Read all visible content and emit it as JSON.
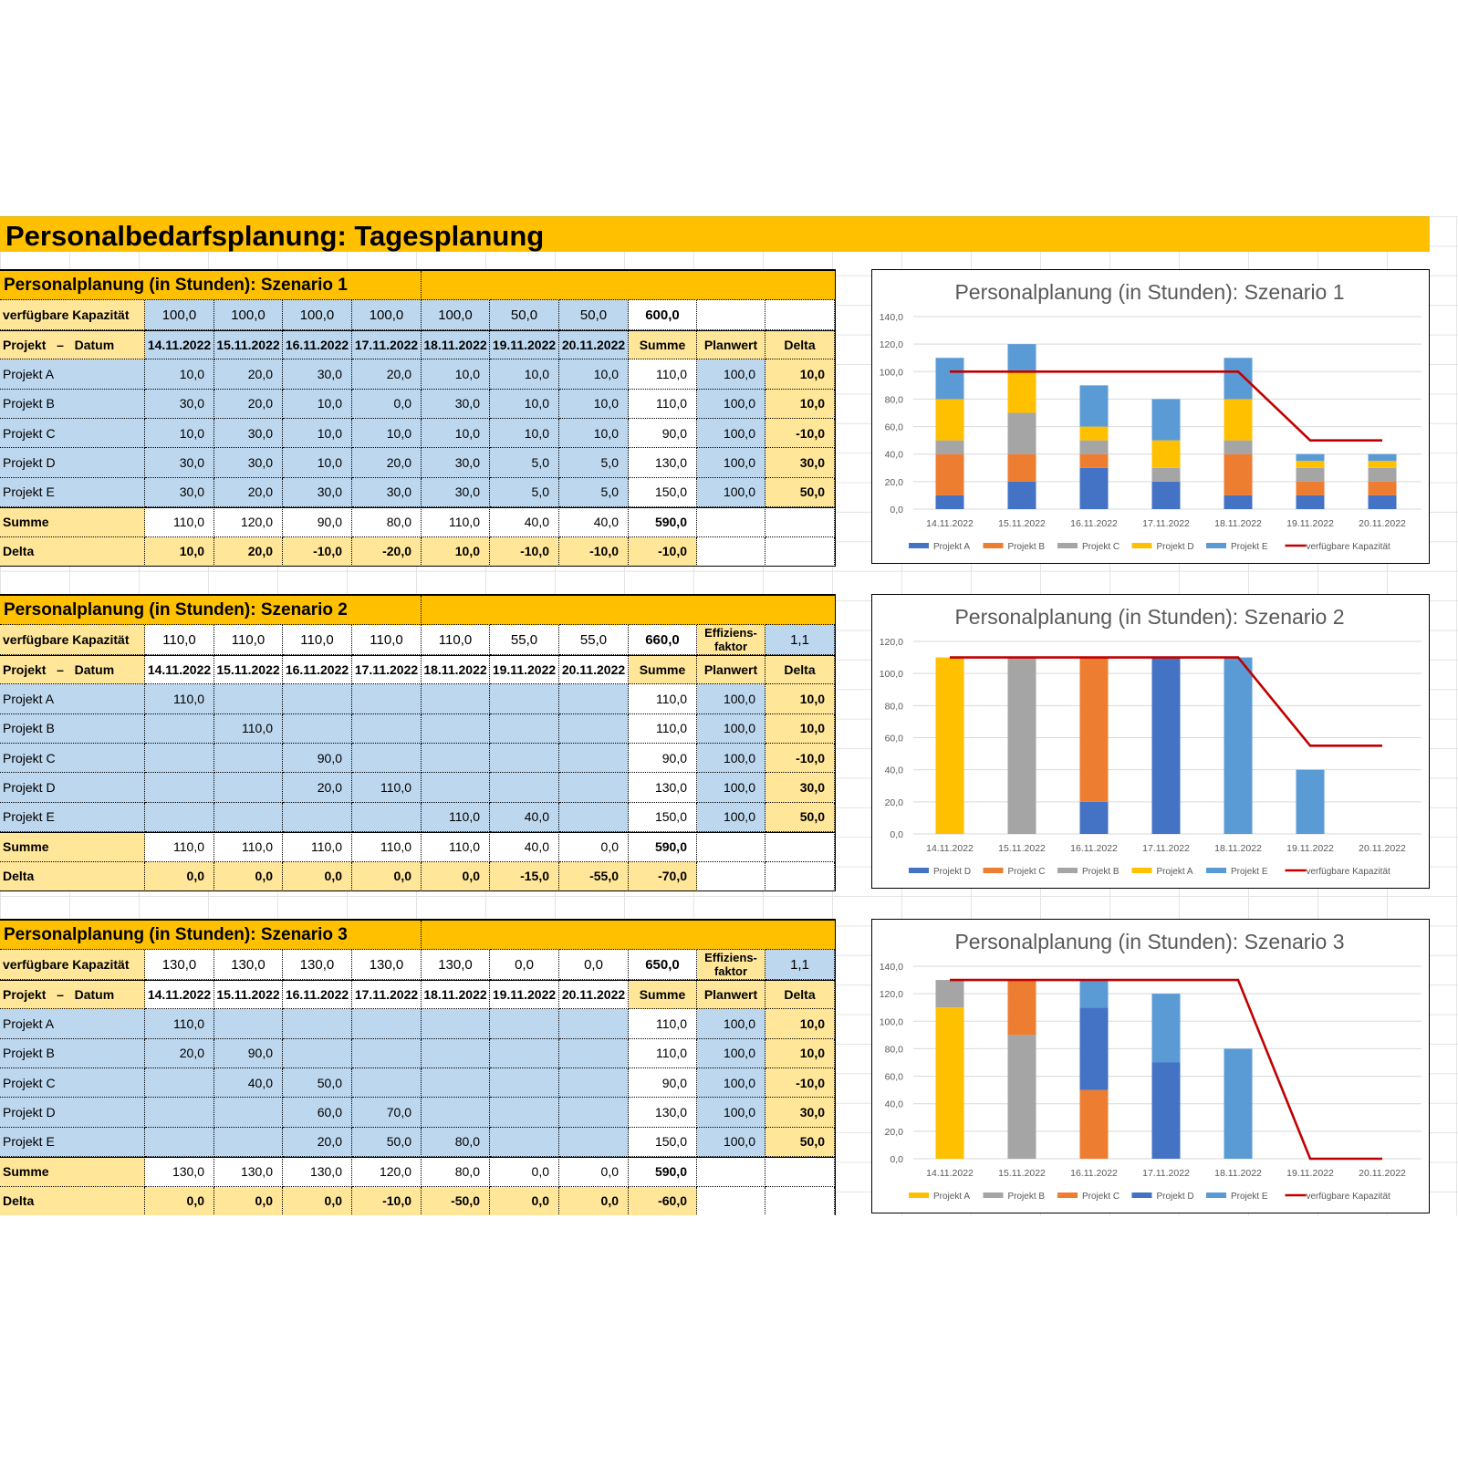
{
  "page_title": "Personalbedarfsplanung: Tagesplanung",
  "dates": [
    "14.11.2022",
    "15.11.2022",
    "16.11.2022",
    "17.11.2022",
    "18.11.2022",
    "19.11.2022",
    "20.11.2022"
  ],
  "colors": {
    "title_bar": "#FFC000",
    "label_yellow": "#FFE699",
    "input_blue": "#BDD7EE",
    "capacity_line": "#C00000"
  },
  "scenarios": [
    {
      "title": "Personalplanung (in Stunden): Szenario 1",
      "capacity_label": "verfügbare Kapazität",
      "capacity": [
        "100,0",
        "100,0",
        "100,0",
        "100,0",
        "100,0",
        "50,0",
        "50,0"
      ],
      "capacity_sum": "600,0",
      "efficiency_label": "",
      "efficiency_value": "",
      "header": {
        "project_date": "Projekt   –   Datum",
        "summe": "Summe",
        "planwert": "Planwert",
        "delta": "Delta"
      },
      "projects": [
        {
          "name": "Projekt A",
          "values": [
            "10,0",
            "20,0",
            "30,0",
            "20,0",
            "10,0",
            "10,0",
            "10,0"
          ],
          "summe": "110,0",
          "planwert": "100,0",
          "delta": "10,0"
        },
        {
          "name": "Projekt B",
          "values": [
            "30,0",
            "20,0",
            "10,0",
            "0,0",
            "30,0",
            "10,0",
            "10,0"
          ],
          "summe": "110,0",
          "planwert": "100,0",
          "delta": "10,0"
        },
        {
          "name": "Projekt C",
          "values": [
            "10,0",
            "30,0",
            "10,0",
            "10,0",
            "10,0",
            "10,0",
            "10,0"
          ],
          "summe": "90,0",
          "planwert": "100,0",
          "delta": "-10,0"
        },
        {
          "name": "Projekt D",
          "values": [
            "30,0",
            "30,0",
            "10,0",
            "20,0",
            "30,0",
            "5,0",
            "5,0"
          ],
          "summe": "130,0",
          "planwert": "100,0",
          "delta": "30,0"
        },
        {
          "name": "Projekt E",
          "values": [
            "30,0",
            "20,0",
            "30,0",
            "30,0",
            "30,0",
            "5,0",
            "5,0"
          ],
          "summe": "150,0",
          "planwert": "100,0",
          "delta": "50,0"
        }
      ],
      "summe_row": {
        "label": "Summe",
        "values": [
          "110,0",
          "120,0",
          "90,0",
          "80,0",
          "110,0",
          "40,0",
          "40,0"
        ],
        "total": "590,0"
      },
      "delta_row": {
        "label": "Delta",
        "values": [
          "10,0",
          "20,0",
          "-10,0",
          "-20,0",
          "10,0",
          "-10,0",
          "-10,0"
        ],
        "total": "-10,0"
      }
    },
    {
      "title": "Personalplanung (in Stunden): Szenario 2",
      "capacity_label": "verfügbare Kapazität",
      "capacity": [
        "110,0",
        "110,0",
        "110,0",
        "110,0",
        "110,0",
        "55,0",
        "55,0"
      ],
      "capacity_sum": "660,0",
      "efficiency_label": "Effiziens-faktor",
      "efficiency_value": "1,1",
      "header": {
        "project_date": "Projekt   –   Datum",
        "summe": "Summe",
        "planwert": "Planwert",
        "delta": "Delta"
      },
      "projects": [
        {
          "name": "Projekt A",
          "values": [
            "110,0",
            "",
            "",
            "",
            "",
            "",
            ""
          ],
          "summe": "110,0",
          "planwert": "100,0",
          "delta": "10,0"
        },
        {
          "name": "Projekt B",
          "values": [
            "",
            "110,0",
            "",
            "",
            "",
            "",
            ""
          ],
          "summe": "110,0",
          "planwert": "100,0",
          "delta": "10,0"
        },
        {
          "name": "Projekt C",
          "values": [
            "",
            "",
            "90,0",
            "",
            "",
            "",
            ""
          ],
          "summe": "90,0",
          "planwert": "100,0",
          "delta": "-10,0"
        },
        {
          "name": "Projekt D",
          "values": [
            "",
            "",
            "20,0",
            "110,0",
            "",
            "",
            ""
          ],
          "summe": "130,0",
          "planwert": "100,0",
          "delta": "30,0"
        },
        {
          "name": "Projekt E",
          "values": [
            "",
            "",
            "",
            "",
            "110,0",
            "40,0",
            ""
          ],
          "summe": "150,0",
          "planwert": "100,0",
          "delta": "50,0"
        }
      ],
      "summe_row": {
        "label": "Summe",
        "values": [
          "110,0",
          "110,0",
          "110,0",
          "110,0",
          "110,0",
          "40,0",
          "0,0"
        ],
        "total": "590,0"
      },
      "delta_row": {
        "label": "Delta",
        "values": [
          "0,0",
          "0,0",
          "0,0",
          "0,0",
          "0,0",
          "-15,0",
          "-55,0"
        ],
        "total": "-70,0"
      }
    },
    {
      "title": "Personalplanung (in Stunden): Szenario 3",
      "capacity_label": "verfügbare Kapazität",
      "capacity": [
        "130,0",
        "130,0",
        "130,0",
        "130,0",
        "130,0",
        "0,0",
        "0,0"
      ],
      "capacity_sum": "650,0",
      "efficiency_label": "Effiziens-faktor",
      "efficiency_value": "1,1",
      "header": {
        "project_date": "Projekt   –   Datum",
        "summe": "Summe",
        "planwert": "Planwert",
        "delta": "Delta"
      },
      "projects": [
        {
          "name": "Projekt A",
          "values": [
            "110,0",
            "",
            "",
            "",
            "",
            "",
            ""
          ],
          "summe": "110,0",
          "planwert": "100,0",
          "delta": "10,0"
        },
        {
          "name": "Projekt B",
          "values": [
            "20,0",
            "90,0",
            "",
            "",
            "",
            "",
            ""
          ],
          "summe": "110,0",
          "planwert": "100,0",
          "delta": "10,0"
        },
        {
          "name": "Projekt C",
          "values": [
            "",
            "40,0",
            "50,0",
            "",
            "",
            "",
            ""
          ],
          "summe": "90,0",
          "planwert": "100,0",
          "delta": "-10,0"
        },
        {
          "name": "Projekt D",
          "values": [
            "",
            "",
            "60,0",
            "70,0",
            "",
            "",
            ""
          ],
          "summe": "130,0",
          "planwert": "100,0",
          "delta": "30,0"
        },
        {
          "name": "Projekt E",
          "values": [
            "",
            "",
            "20,0",
            "50,0",
            "80,0",
            "",
            ""
          ],
          "summe": "150,0",
          "planwert": "100,0",
          "delta": "50,0"
        }
      ],
      "summe_row": {
        "label": "Summe",
        "values": [
          "130,0",
          "130,0",
          "130,0",
          "120,0",
          "80,0",
          "0,0",
          "0,0"
        ],
        "total": "590,0"
      },
      "delta_row": {
        "label": "Delta",
        "values": [
          "0,0",
          "0,0",
          "0,0",
          "-10,0",
          "-50,0",
          "0,0",
          "0,0"
        ],
        "total": "-60,0"
      }
    }
  ],
  "chart_data": [
    {
      "type": "bar",
      "stacked": true,
      "title": "Personalplanung (in Stunden): Szenario 1",
      "categories": [
        "14.11.2022",
        "15.11.2022",
        "16.11.2022",
        "17.11.2022",
        "18.11.2022",
        "19.11.2022",
        "20.11.2022"
      ],
      "ylim": [
        0,
        140
      ],
      "ytick_step": 20,
      "yticks": [
        "0,0",
        "20,0",
        "40,0",
        "60,0",
        "80,0",
        "100,0",
        "120,0",
        "140,0"
      ],
      "grid": true,
      "legend": "bottom",
      "series": [
        {
          "name": "Projekt A",
          "color": "#4472C4",
          "values": [
            10,
            20,
            30,
            20,
            10,
            10,
            10
          ]
        },
        {
          "name": "Projekt B",
          "color": "#ED7D31",
          "values": [
            30,
            20,
            10,
            0,
            30,
            10,
            10
          ]
        },
        {
          "name": "Projekt C",
          "color": "#A5A5A5",
          "values": [
            10,
            30,
            10,
            10,
            10,
            10,
            10
          ]
        },
        {
          "name": "Projekt D",
          "color": "#FFC000",
          "values": [
            30,
            30,
            10,
            20,
            30,
            5,
            5
          ]
        },
        {
          "name": "Projekt E",
          "color": "#5B9BD5",
          "values": [
            30,
            20,
            30,
            30,
            30,
            5,
            5
          ]
        }
      ],
      "line": {
        "name": "verfügbare Kapazität",
        "color": "#C00000",
        "values": [
          100,
          100,
          100,
          100,
          100,
          50,
          50
        ]
      }
    },
    {
      "type": "bar",
      "stacked": true,
      "title": "Personalplanung (in Stunden): Szenario 2",
      "categories": [
        "14.11.2022",
        "15.11.2022",
        "16.11.2022",
        "17.11.2022",
        "18.11.2022",
        "19.11.2022",
        "20.11.2022"
      ],
      "ylim": [
        0,
        120
      ],
      "ytick_step": 20,
      "yticks": [
        "0,0",
        "20,0",
        "40,0",
        "60,0",
        "80,0",
        "100,0",
        "120,0"
      ],
      "grid": true,
      "legend": "bottom",
      "series": [
        {
          "name": "Projekt D",
          "color": "#4472C4",
          "values": [
            0,
            0,
            20,
            110,
            0,
            0,
            0
          ]
        },
        {
          "name": "Projekt C",
          "color": "#ED7D31",
          "values": [
            0,
            0,
            90,
            0,
            0,
            0,
            0
          ]
        },
        {
          "name": "Projekt B",
          "color": "#A5A5A5",
          "values": [
            0,
            110,
            0,
            0,
            0,
            0,
            0
          ]
        },
        {
          "name": "Projekt A",
          "color": "#FFC000",
          "values": [
            110,
            0,
            0,
            0,
            0,
            0,
            0
          ]
        },
        {
          "name": "Projekt E",
          "color": "#5B9BD5",
          "values": [
            0,
            0,
            0,
            0,
            110,
            40,
            0
          ]
        }
      ],
      "line": {
        "name": "verfügbare Kapazität",
        "color": "#C00000",
        "values": [
          110,
          110,
          110,
          110,
          110,
          55,
          55
        ]
      }
    },
    {
      "type": "bar",
      "stacked": true,
      "title": "Personalplanung (in Stunden): Szenario 3",
      "categories": [
        "14.11.2022",
        "15.11.2022",
        "16.11.2022",
        "17.11.2022",
        "18.11.2022",
        "19.11.2022",
        "20.11.2022"
      ],
      "ylim": [
        0,
        140
      ],
      "ytick_step": 20,
      "yticks": [
        "0,0",
        "20,0",
        "40,0",
        "60,0",
        "80,0",
        "100,0",
        "120,0",
        "140,0"
      ],
      "grid": true,
      "legend": "bottom",
      "series": [
        {
          "name": "Projekt A",
          "color": "#FFC000",
          "values": [
            110,
            0,
            0,
            0,
            0,
            0,
            0
          ]
        },
        {
          "name": "Projekt B",
          "color": "#A5A5A5",
          "values": [
            20,
            90,
            0,
            0,
            0,
            0,
            0
          ]
        },
        {
          "name": "Projekt C",
          "color": "#ED7D31",
          "values": [
            0,
            40,
            50,
            0,
            0,
            0,
            0
          ]
        },
        {
          "name": "Projekt D",
          "color": "#4472C4",
          "values": [
            0,
            0,
            60,
            70,
            0,
            0,
            0
          ]
        },
        {
          "name": "Projekt E",
          "color": "#5B9BD5",
          "values": [
            0,
            0,
            20,
            50,
            80,
            0,
            0
          ]
        }
      ],
      "line": {
        "name": "verfügbare Kapazität",
        "color": "#C00000",
        "values": [
          130,
          130,
          130,
          130,
          130,
          0,
          0
        ]
      }
    }
  ]
}
